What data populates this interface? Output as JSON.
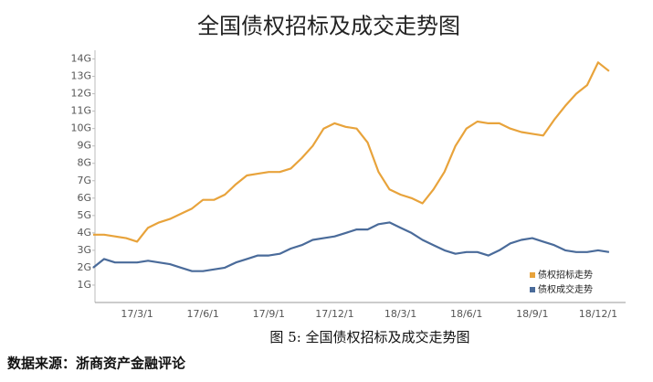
{
  "chart_data": {
    "type": "line",
    "title": "全国债权招标及成交走势图",
    "caption": "图 5: 全国债权招标及成交走势图",
    "source": "数据来源：浙商资产金融评论",
    "categories": [
      null,
      null,
      null,
      null,
      "17/3/1",
      null,
      null,
      null,
      null,
      null,
      "17/6/1",
      null,
      null,
      null,
      null,
      null,
      "17/9/1",
      null,
      null,
      null,
      null,
      null,
      "17/12/1",
      null,
      null,
      null,
      null,
      null,
      "18/3/1",
      null,
      null,
      null,
      null,
      null,
      "18/6/1",
      null,
      null,
      null,
      null,
      null,
      "18/9/1",
      null,
      null,
      null,
      null,
      null,
      "18/12/1",
      null
    ],
    "series": [
      {
        "name": "债权招标走势",
        "color": "#e8a33b",
        "values": [
          3.9,
          3.9,
          3.8,
          3.7,
          3.5,
          4.3,
          4.6,
          4.8,
          5.1,
          5.4,
          5.9,
          5.9,
          6.2,
          6.8,
          7.3,
          7.4,
          7.5,
          7.5,
          7.7,
          8.3,
          9.0,
          10.0,
          10.3,
          10.1,
          10.0,
          9.2,
          7.5,
          6.5,
          6.2,
          6.0,
          5.7,
          6.5,
          7.5,
          9.0,
          10.0,
          10.4,
          10.3,
          10.3,
          10.0,
          9.8,
          9.7,
          9.6,
          10.5,
          11.3,
          12.0,
          12.5,
          13.8,
          13.3
        ]
      },
      {
        "name": "债权成交走势",
        "color": "#4a6b9a",
        "values": [
          2.0,
          2.5,
          2.3,
          2.3,
          2.3,
          2.4,
          2.3,
          2.2,
          2.0,
          1.8,
          1.8,
          1.9,
          2.0,
          2.3,
          2.5,
          2.7,
          2.7,
          2.8,
          3.1,
          3.3,
          3.6,
          3.7,
          3.8,
          4.0,
          4.2,
          4.2,
          4.5,
          4.6,
          4.3,
          4.0,
          3.6,
          3.3,
          3.0,
          2.8,
          2.9,
          2.9,
          2.7,
          3.0,
          3.4,
          3.6,
          3.7,
          3.5,
          3.3,
          3.0,
          2.9,
          2.9,
          3.0,
          2.9
        ]
      }
    ],
    "ylim": [
      0,
      14.5
    ],
    "yticks": [
      {
        "value": 1,
        "label": "1G"
      },
      {
        "value": 2,
        "label": "2G"
      },
      {
        "value": 3,
        "label": "3G"
      },
      {
        "value": 4,
        "label": "4G"
      },
      {
        "value": 5,
        "label": "5G"
      },
      {
        "value": 6,
        "label": "6G"
      },
      {
        "value": 7,
        "label": "7G"
      },
      {
        "value": 8,
        "label": "8G"
      },
      {
        "value": 9,
        "label": "9G"
      },
      {
        "value": 10,
        "label": "10G"
      },
      {
        "value": 11,
        "label": "11G"
      },
      {
        "value": 12,
        "label": "12G"
      },
      {
        "value": 13,
        "label": "13G"
      },
      {
        "value": 14,
        "label": "14G"
      }
    ],
    "legend": "lower right"
  }
}
